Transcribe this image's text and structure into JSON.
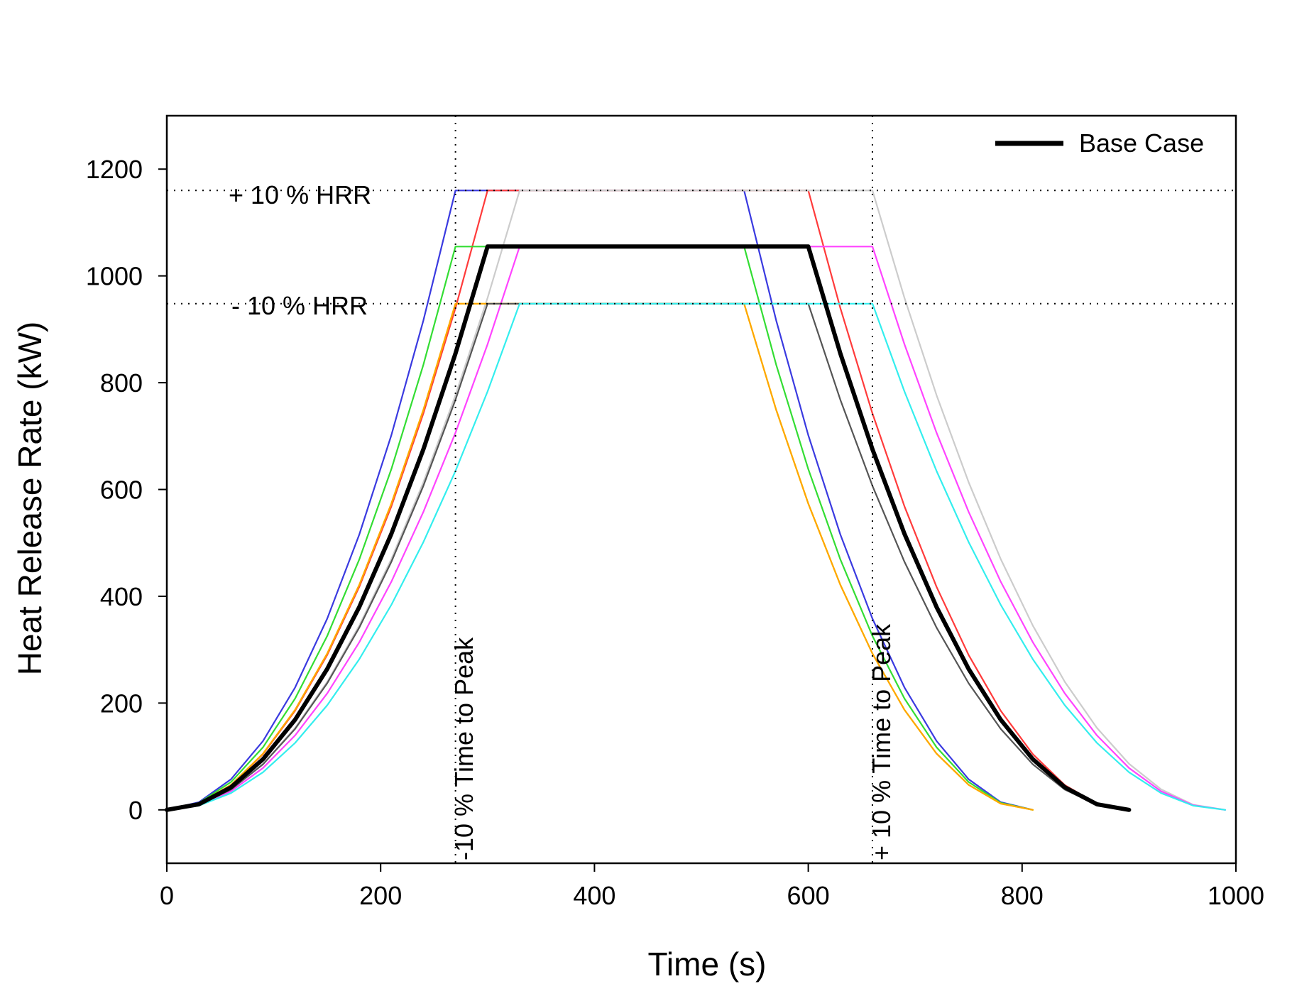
{
  "chart_data": {
    "type": "line",
    "title": "",
    "xlabel": "Time (s)",
    "ylabel": "Heat Release Rate (kW)",
    "xlim": [
      0,
      1000
    ],
    "ylim": [
      -100,
      1300
    ],
    "xticks": [
      0,
      200,
      400,
      600,
      800,
      1000
    ],
    "yticks": [
      0,
      200,
      400,
      600,
      800,
      1000,
      1200
    ],
    "grid": false,
    "legend": {
      "position": "top-right",
      "entries": [
        "Base Case"
      ]
    },
    "reference_lines": {
      "horizontal": [
        1160,
        948
      ],
      "vertical": [
        270,
        660
      ]
    },
    "annotations": [
      {
        "text": "+ 10 % HRR"
      },
      {
        "text": "- 10 % HRR"
      },
      {
        "text": "-10 % Time to Peak"
      },
      {
        "text": "+ 10 % Time to Peak"
      }
    ],
    "series": [
      {
        "name": "Base Case",
        "color": "#000000",
        "tg": 300,
        "peak": 1055,
        "decay_start": 600,
        "end": 900,
        "emphasis": true
      },
      {
        "color": "#3a3ae0",
        "tg": 270,
        "peak": 1160,
        "decay_start": 540,
        "end": 810
      },
      {
        "color": "#ff3b3b",
        "tg": 300,
        "peak": 1160,
        "decay_start": 600,
        "end": 900
      },
      {
        "color": "#cccccc",
        "tg": 330,
        "peak": 1160,
        "decay_start": 660,
        "end": 990
      },
      {
        "color": "#33dd33",
        "tg": 270,
        "peak": 1055,
        "decay_start": 540,
        "end": 810
      },
      {
        "color": "#ff44ff",
        "tg": 330,
        "peak": 1055,
        "decay_start": 660,
        "end": 990
      },
      {
        "color": "#f0f000",
        "tg": 270,
        "peak": 948,
        "decay_start": 540,
        "end": 810
      },
      {
        "color": "#ffa500",
        "tg": 270,
        "peak": 948,
        "decay_start": 540,
        "end": 810
      },
      {
        "color": "#555555",
        "tg": 300,
        "peak": 948,
        "decay_start": 600,
        "end": 900
      },
      {
        "color": "#33eeee",
        "tg": 330,
        "peak": 948,
        "decay_start": 660,
        "end": 990
      }
    ]
  }
}
